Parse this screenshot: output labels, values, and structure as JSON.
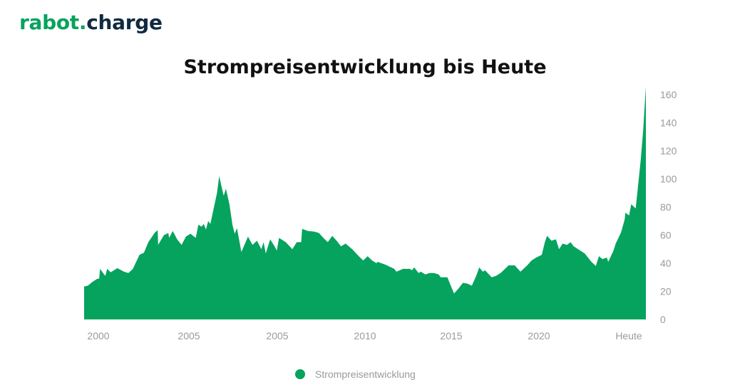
{
  "logo": {
    "part1": "rabot.",
    "part2": "charge"
  },
  "colors": {
    "accent": "#05a35e",
    "logo_dark": "#0f2a40",
    "tick_text": "#9a9a9a"
  },
  "chart_data": {
    "type": "area",
    "title": "Strompreisentwicklung bis Heute",
    "xlabel": "",
    "ylabel": "",
    "legend_position": "bottom-center",
    "grid": false,
    "y_axis_position": "right",
    "x_tick_labels": [
      "2000",
      "2005",
      "2005",
      "2010",
      "2015",
      "2020",
      "Heute"
    ],
    "y_ticks": [
      0,
      20,
      40,
      60,
      80,
      100,
      120,
      140,
      160
    ],
    "ylim": [
      0,
      160
    ],
    "series": [
      {
        "name": "Strompreisentwicklung",
        "color": "#05a35e",
        "points": [
          [
            0.0,
            23.5
          ],
          [
            0.08,
            24
          ],
          [
            0.2,
            27
          ],
          [
            0.3,
            29
          ],
          [
            0.34,
            29
          ],
          [
            0.36,
            36
          ],
          [
            0.45,
            32
          ],
          [
            0.48,
            31
          ],
          [
            0.52,
            36
          ],
          [
            0.6,
            33.5
          ],
          [
            0.75,
            36.5
          ],
          [
            0.9,
            34
          ],
          [
            1.0,
            33
          ],
          [
            1.1,
            36
          ],
          [
            1.25,
            46
          ],
          [
            1.35,
            47.5
          ],
          [
            1.45,
            55
          ],
          [
            1.6,
            62
          ],
          [
            1.66,
            63.5
          ],
          [
            1.67,
            53
          ],
          [
            1.8,
            60
          ],
          [
            1.9,
            61.5
          ],
          [
            1.92,
            58
          ],
          [
            2.0,
            63
          ],
          [
            2.1,
            57
          ],
          [
            2.2,
            53
          ],
          [
            2.3,
            59
          ],
          [
            2.4,
            61
          ],
          [
            2.52,
            58
          ],
          [
            2.58,
            67.5
          ],
          [
            2.65,
            66
          ],
          [
            2.7,
            68
          ],
          [
            2.75,
            64
          ],
          [
            2.8,
            70
          ],
          [
            2.85,
            68
          ],
          [
            3.0,
            90
          ],
          [
            3.05,
            102
          ],
          [
            3.1,
            95
          ],
          [
            3.15,
            88
          ],
          [
            3.2,
            93
          ],
          [
            3.28,
            82
          ],
          [
            3.35,
            67
          ],
          [
            3.4,
            61
          ],
          [
            3.45,
            65
          ],
          [
            3.55,
            48
          ],
          [
            3.7,
            59
          ],
          [
            3.8,
            53
          ],
          [
            3.9,
            56
          ],
          [
            4.0,
            50
          ],
          [
            4.05,
            55
          ],
          [
            4.1,
            47
          ],
          [
            4.2,
            57
          ],
          [
            4.3,
            52
          ],
          [
            4.35,
            49
          ],
          [
            4.4,
            58
          ],
          [
            4.55,
            55
          ],
          [
            4.7,
            50
          ],
          [
            4.8,
            55
          ],
          [
            4.9,
            55
          ],
          [
            4.92,
            64.5
          ],
          [
            5.05,
            63
          ],
          [
            5.2,
            62.5
          ],
          [
            5.3,
            61.5
          ],
          [
            5.4,
            58
          ],
          [
            5.5,
            55
          ],
          [
            5.6,
            59.5
          ],
          [
            5.7,
            56
          ],
          [
            5.8,
            52
          ],
          [
            5.9,
            54
          ],
          [
            6.05,
            50
          ],
          [
            6.2,
            45
          ],
          [
            6.3,
            42
          ],
          [
            6.4,
            45
          ],
          [
            6.5,
            42
          ],
          [
            6.6,
            40
          ],
          [
            6.62,
            41
          ],
          [
            6.8,
            39
          ],
          [
            7.0,
            36
          ],
          [
            7.05,
            34
          ],
          [
            7.2,
            36
          ],
          [
            7.35,
            36
          ],
          [
            7.4,
            35
          ],
          [
            7.45,
            37
          ],
          [
            7.55,
            33
          ],
          [
            7.6,
            34
          ],
          [
            7.7,
            32
          ],
          [
            7.8,
            33
          ],
          [
            7.9,
            33
          ],
          [
            8.0,
            32
          ],
          [
            8.05,
            30
          ],
          [
            8.2,
            30
          ],
          [
            8.25,
            26
          ],
          [
            8.35,
            18.5
          ],
          [
            8.45,
            22
          ],
          [
            8.55,
            26
          ],
          [
            8.65,
            25.5
          ],
          [
            8.75,
            24
          ],
          [
            8.85,
            31
          ],
          [
            8.92,
            37
          ],
          [
            9.0,
            34
          ],
          [
            9.05,
            35
          ],
          [
            9.2,
            30
          ],
          [
            9.3,
            31
          ],
          [
            9.4,
            33
          ],
          [
            9.5,
            36
          ],
          [
            9.58,
            38.5
          ],
          [
            9.72,
            38.5
          ],
          [
            9.85,
            34
          ],
          [
            10.0,
            38.5
          ],
          [
            10.1,
            42
          ],
          [
            10.2,
            44
          ],
          [
            10.33,
            46
          ],
          [
            10.4,
            55
          ],
          [
            10.45,
            59.5
          ],
          [
            10.55,
            56
          ],
          [
            10.65,
            57
          ],
          [
            10.72,
            50
          ],
          [
            10.8,
            54
          ],
          [
            10.9,
            53
          ],
          [
            10.98,
            55
          ],
          [
            11.05,
            52
          ],
          [
            11.15,
            50
          ],
          [
            11.3,
            47
          ],
          [
            11.4,
            43
          ],
          [
            11.45,
            41
          ],
          [
            11.55,
            38
          ],
          [
            11.62,
            45
          ],
          [
            11.7,
            43
          ],
          [
            11.8,
            44
          ],
          [
            11.83,
            41
          ],
          [
            11.95,
            49
          ],
          [
            12.0,
            54
          ],
          [
            12.12,
            62
          ],
          [
            12.2,
            71
          ],
          [
            12.22,
            76
          ],
          [
            12.3,
            74
          ],
          [
            12.35,
            82
          ],
          [
            12.45,
            79
          ],
          [
            12.56,
            112
          ],
          [
            12.62,
            135
          ],
          [
            12.68,
            166
          ]
        ]
      }
    ]
  }
}
